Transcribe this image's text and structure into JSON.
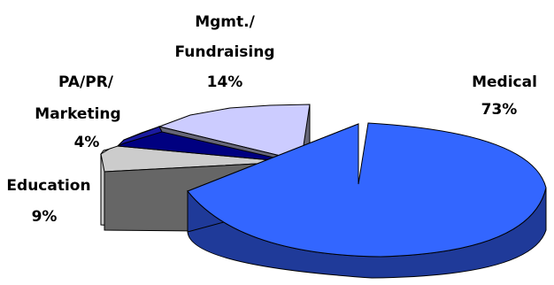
{
  "chart_data": {
    "type": "pie",
    "style": "3d-exploded",
    "slices": [
      {
        "name": "Medical",
        "value": 73,
        "label": "73%",
        "color": "#3366ff"
      },
      {
        "name": "Education",
        "value": 9,
        "label": "9%",
        "color": "#cccccc"
      },
      {
        "name": "PA/PR/ Marketing",
        "value": 4,
        "label": "4%",
        "color": "#000080"
      },
      {
        "name": "Mgmt./ Fundraising",
        "value": 14,
        "label": "14%",
        "color": "#ccccff"
      }
    ],
    "labels": {
      "medical_name": "Medical",
      "medical_pct": "73%",
      "education_name": "Education",
      "education_pct": "9%",
      "marketing_name_1": "PA/PR/",
      "marketing_name_2": "Marketing",
      "marketing_pct": "4%",
      "mgmt_name_1": "Mgmt./",
      "mgmt_name_2": "Fundraising",
      "mgmt_pct": "14%"
    }
  }
}
